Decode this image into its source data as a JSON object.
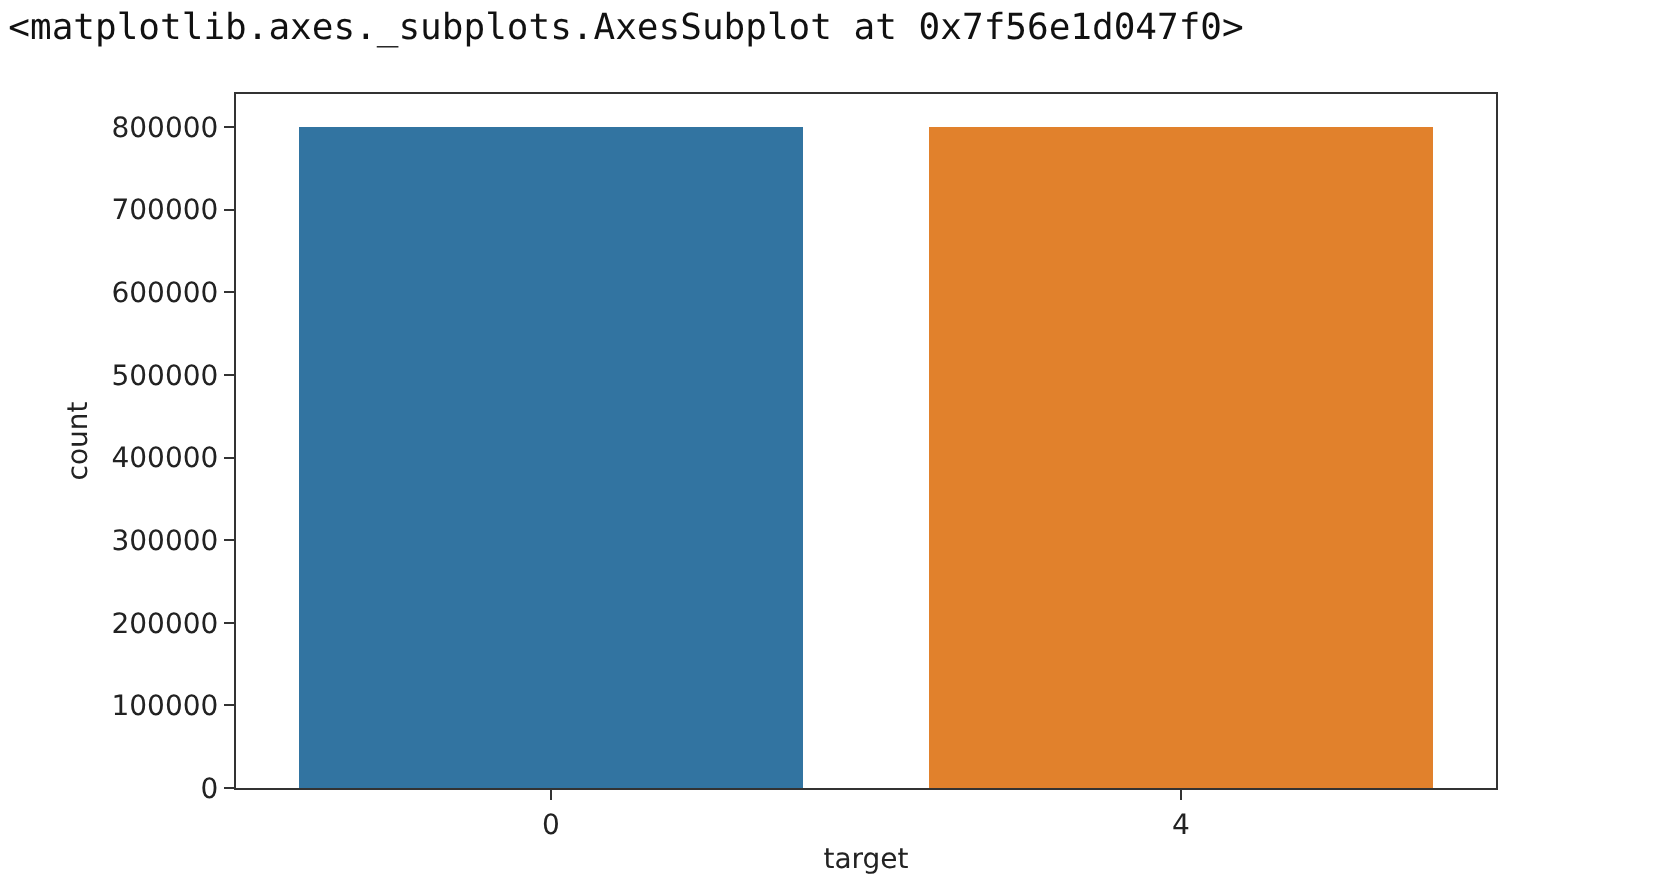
{
  "chart_data": {
    "type": "bar",
    "title": "<matplotlib.axes._subplots.AxesSubplot at 0x7f56e1d047f0>",
    "categories": [
      "0",
      "4"
    ],
    "values": [
      800000,
      800000
    ],
    "colors": [
      "#3274a1",
      "#e1812c"
    ],
    "xlabel": "target",
    "ylabel": "count",
    "ylim": [
      0,
      840000
    ],
    "yticks": [
      0,
      100000,
      200000,
      300000,
      400000,
      500000,
      600000,
      700000,
      800000
    ],
    "marker": "none"
  }
}
